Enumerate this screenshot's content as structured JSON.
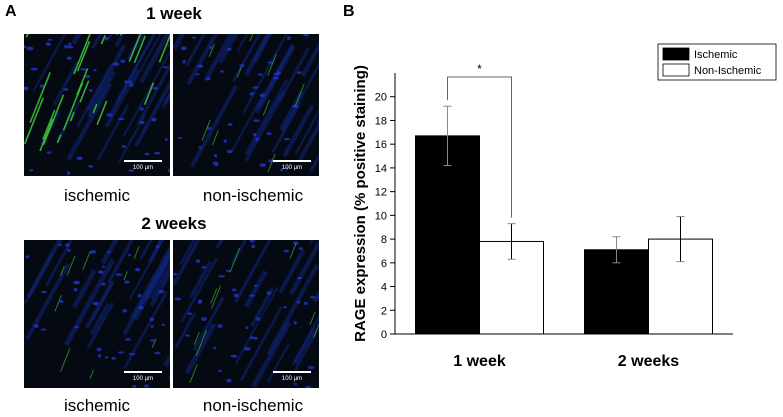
{
  "panel_a": {
    "letter": "A",
    "groups": [
      {
        "title": "1 week",
        "images": [
          {
            "label": "ischemic",
            "scale": "100 µm",
            "green_intensity": "high"
          },
          {
            "label": "non-ischemic",
            "scale": "100 µm",
            "green_intensity": "low"
          }
        ]
      },
      {
        "title": "2 weeks",
        "images": [
          {
            "label": "ischemic",
            "scale": "100 µm",
            "green_intensity": "low"
          },
          {
            "label": "non-ischemic",
            "scale": "100 µm",
            "green_intensity": "low"
          }
        ]
      }
    ]
  },
  "panel_b": {
    "letter": "B"
  },
  "chart_data": {
    "type": "bar",
    "categories": [
      "1 week",
      "2 weeks"
    ],
    "series": [
      {
        "name": "Ischemic",
        "values": [
          16.7,
          7.1
        ],
        "errors": [
          2.5,
          1.1
        ],
        "fill": "#000000"
      },
      {
        "name": "Non-Ischemic",
        "values": [
          7.8,
          8.0
        ],
        "errors": [
          1.5,
          1.9
        ],
        "fill": "#ffffff"
      }
    ],
    "title": "",
    "xlabel": "",
    "ylabel": "RAGE expression (% positive staining)",
    "ylim": [
      0,
      22
    ],
    "yticks": [
      0,
      2,
      4,
      6,
      8,
      10,
      12,
      14,
      16,
      18,
      20
    ],
    "grid": false,
    "legend": "top-right",
    "annotations": [
      {
        "text": "*",
        "between": [
          "1 week Ischemic",
          "1 week Non-Ischemic"
        ]
      }
    ]
  }
}
